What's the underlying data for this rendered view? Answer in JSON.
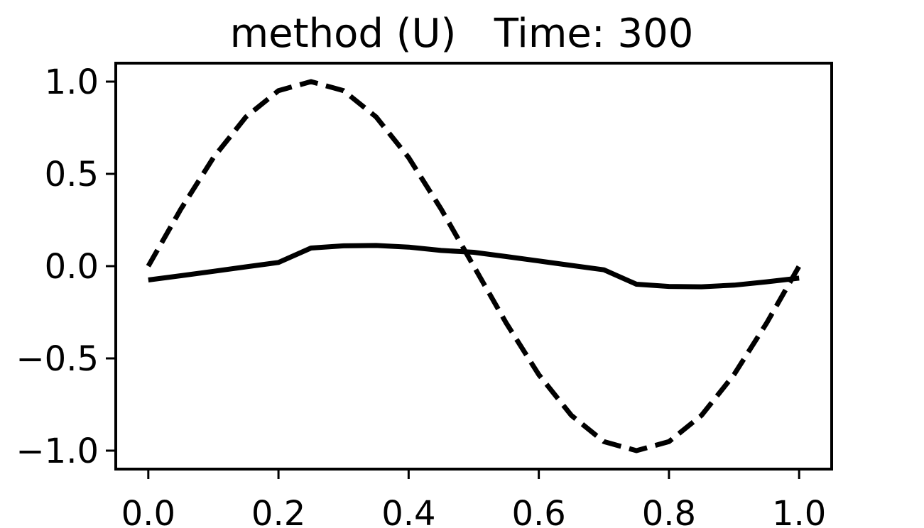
{
  "chart_data": {
    "type": "line",
    "title": "method (U)   Time: 300",
    "xlabel": "",
    "ylabel": "",
    "xlim": [
      -0.05,
      1.05
    ],
    "ylim": [
      -1.1,
      1.1
    ],
    "x_ticks": [
      0.0,
      0.2,
      0.4,
      0.6,
      0.8,
      1.0
    ],
    "x_tick_labels": [
      "0.0",
      "0.2",
      "0.4",
      "0.6",
      "0.8",
      "1.0"
    ],
    "y_ticks": [
      1.0,
      0.5,
      0.0,
      -0.5,
      -1.0
    ],
    "y_tick_labels": [
      "1.0",
      "0.5",
      "0.0",
      "−0.5",
      "−1.0"
    ],
    "grid": false,
    "legend": "none",
    "series": [
      {
        "style": "dashed",
        "color": "#000000",
        "x": [
          0.0,
          0.05,
          0.1,
          0.15,
          0.2,
          0.25,
          0.3,
          0.35,
          0.4,
          0.45,
          0.5,
          0.55,
          0.6,
          0.65,
          0.7,
          0.75,
          0.8,
          0.85,
          0.9,
          0.95,
          1.0
        ],
        "y": [
          0.0,
          0.309,
          0.588,
          0.809,
          0.951,
          1.0,
          0.951,
          0.809,
          0.588,
          0.309,
          0.0,
          -0.309,
          -0.588,
          -0.809,
          -0.951,
          -1.0,
          -0.951,
          -0.809,
          -0.588,
          -0.309,
          0.0
        ]
      },
      {
        "style": "solid",
        "color": "#000000",
        "x": [
          0.0,
          0.05,
          0.1,
          0.15,
          0.2,
          0.25,
          0.3,
          0.35,
          0.4,
          0.45,
          0.5,
          0.55,
          0.6,
          0.65,
          0.7,
          0.75,
          0.8,
          0.85,
          0.9,
          0.95,
          1.0
        ],
        "y": [
          -0.075,
          -0.052,
          -0.028,
          -0.004,
          0.02,
          0.098,
          0.11,
          0.112,
          0.103,
          0.085,
          0.075,
          0.052,
          0.028,
          0.004,
          -0.02,
          -0.098,
          -0.11,
          -0.112,
          -0.103,
          -0.085,
          -0.065
        ]
      }
    ]
  }
}
